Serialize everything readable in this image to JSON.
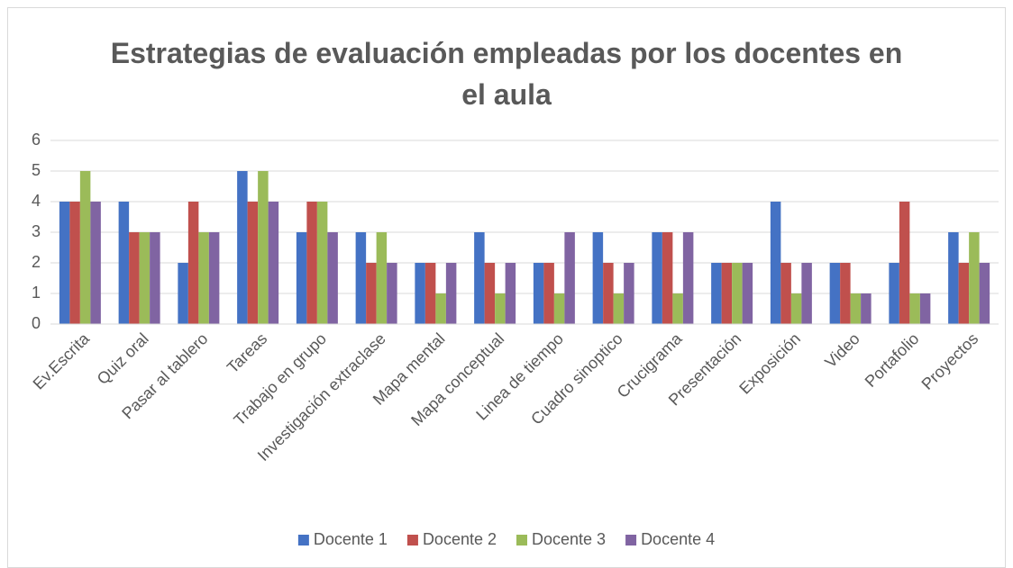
{
  "chart_data": {
    "type": "bar",
    "title": "Estrategias de evaluación empleadas por los docentes en el aula",
    "categories": [
      "Ev.Escrita",
      "Quiz oral",
      "Pasar al tablero",
      "Tareas",
      "Trabajo en grupo",
      "Investigación extraclase",
      "Mapa mental",
      "Mapa conceptual",
      "Linea de tiempo",
      "Cuadro sinoptico",
      "Crucigrama",
      "Presentación",
      "Exposición",
      "Video",
      "Portafolio",
      "Proyectos"
    ],
    "series": [
      {
        "name": "Docente 1",
        "color": "#4472c4",
        "values": [
          4,
          4,
          2,
          5,
          3,
          3,
          2,
          3,
          2,
          3,
          3,
          2,
          4,
          2,
          2,
          3
        ]
      },
      {
        "name": "Docente 2",
        "color": "#c0504d",
        "values": [
          4,
          3,
          4,
          4,
          4,
          2,
          2,
          2,
          2,
          2,
          3,
          2,
          2,
          2,
          4,
          2
        ]
      },
      {
        "name": "Docente 3",
        "color": "#9bbb59",
        "values": [
          5,
          3,
          3,
          5,
          4,
          3,
          1,
          1,
          1,
          1,
          1,
          2,
          1,
          1,
          1,
          3
        ]
      },
      {
        "name": "Docente 4",
        "color": "#8064a2",
        "values": [
          4,
          3,
          3,
          4,
          3,
          2,
          2,
          2,
          3,
          2,
          3,
          2,
          2,
          1,
          1,
          2
        ]
      }
    ],
    "ylim": [
      0,
      6
    ],
    "yticks": [
      0,
      1,
      2,
      3,
      4,
      5,
      6
    ],
    "grid": true,
    "legend": "bottom"
  }
}
